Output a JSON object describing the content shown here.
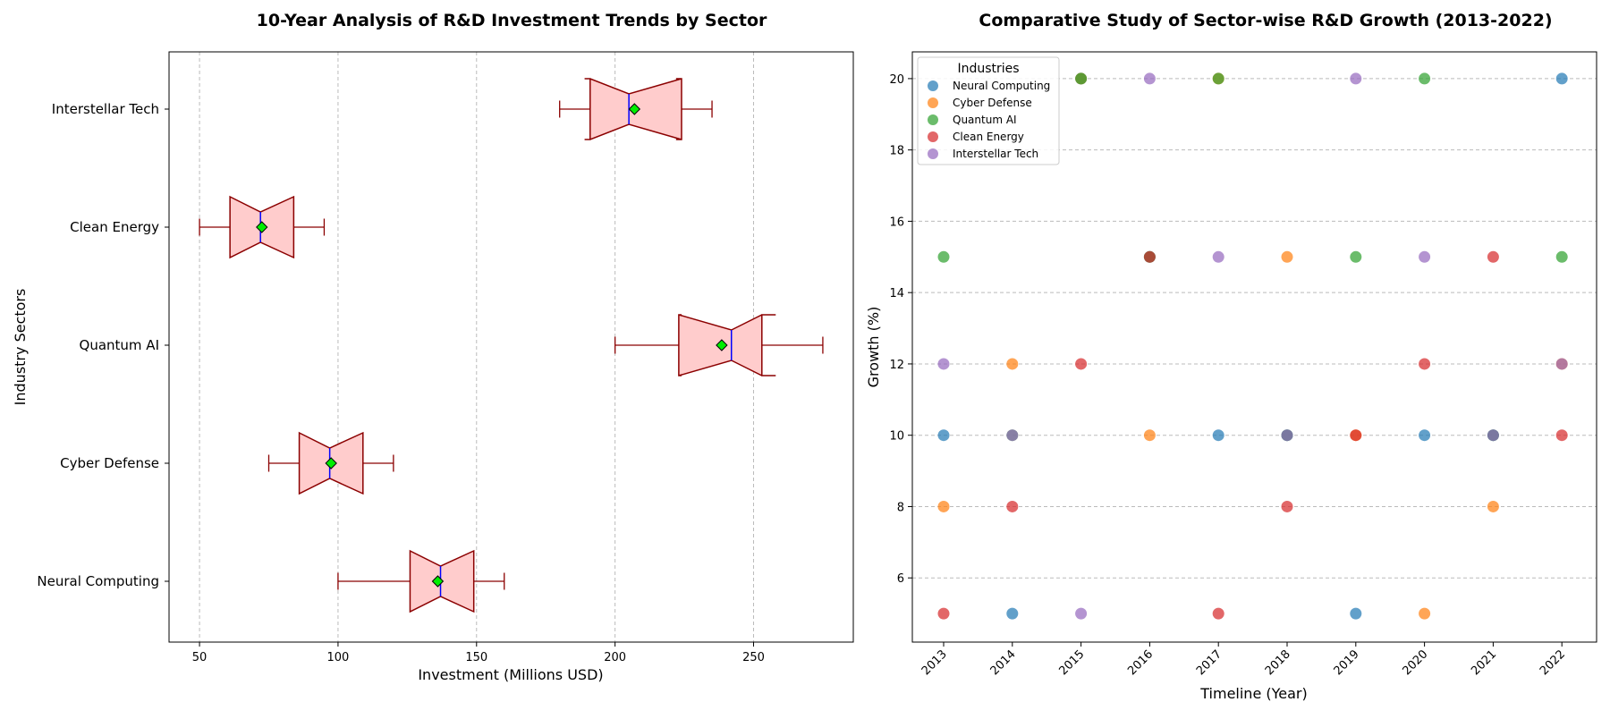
{
  "chart_data": [
    {
      "type": "box",
      "title": "10-Year Analysis of R&D Investment Trends by Sector",
      "xlabel": "Investment (Millions USD)",
      "ylabel": "Industry Sectors",
      "xlim": [
        39,
        286
      ],
      "xticks": [
        50,
        100,
        150,
        200,
        250
      ],
      "grid": "x-dashed",
      "categories": [
        "Neural Computing",
        "Cyber Defense",
        "Quantum AI",
        "Clean Energy",
        "Interstellar Tech"
      ],
      "boxes": [
        {
          "name": "Neural Computing",
          "whislo": 100,
          "q1": 126,
          "med": 137,
          "q3": 149,
          "whishi": 160,
          "mean": 136,
          "notch_lo": 126,
          "notch_hi": 149
        },
        {
          "name": "Cyber Defense",
          "whislo": 75,
          "q1": 86,
          "med": 97,
          "q3": 109,
          "whishi": 120,
          "mean": 97.5,
          "notch_lo": 86,
          "notch_hi": 109
        },
        {
          "name": "Quantum AI",
          "whislo": 200,
          "q1": 223,
          "med": 242,
          "q3": 253,
          "whishi": 275,
          "mean": 238.5,
          "notch_lo": 224,
          "notch_hi": 258
        },
        {
          "name": "Clean Energy",
          "whislo": 50,
          "q1": 61,
          "med": 72,
          "q3": 84,
          "whishi": 95,
          "mean": 72.5,
          "notch_lo": 61,
          "notch_hi": 84
        },
        {
          "name": "Interstellar Tech",
          "whislo": 180,
          "q1": 191,
          "med": 205,
          "q3": 224,
          "whishi": 235,
          "mean": 207,
          "notch_lo": 189,
          "notch_hi": 222
        }
      ],
      "colors": {
        "box_fill": "#ffcccc",
        "box_edge": "#8b0000",
        "median": "#0000ff",
        "mean_marker": "#00ee00",
        "whisker": "#8b0000"
      }
    },
    {
      "type": "scatter",
      "title": "Comparative Study of Sector-wise R&D Growth (2013-2022)",
      "xlabel": "Timeline (Year)",
      "ylabel": "Growth (%)",
      "x": [
        2013,
        2014,
        2015,
        2016,
        2017,
        2018,
        2019,
        2020,
        2021,
        2022
      ],
      "ylim": [
        4.2,
        20.75
      ],
      "yticks": [
        6,
        8,
        10,
        12,
        14,
        16,
        18,
        20
      ],
      "grid": "y-dashed",
      "legend": {
        "title": "Industries",
        "placement": "top-left"
      },
      "series": [
        {
          "name": "Neural Computing",
          "color": "#1f77b4",
          "values": [
            10,
            5,
            20,
            15,
            10,
            10,
            5,
            10,
            10,
            20
          ]
        },
        {
          "name": "Cyber Defense",
          "color": "#ff7f0e",
          "values": [
            8,
            12,
            20,
            10,
            20,
            15,
            10,
            5,
            8,
            12
          ]
        },
        {
          "name": "Quantum AI",
          "color": "#2ca02c",
          "values": [
            15,
            10,
            20,
            15,
            20,
            10,
            15,
            20,
            10,
            15
          ]
        },
        {
          "name": "Clean Energy",
          "color": "#d62728",
          "values": [
            5,
            8,
            12,
            15,
            5,
            8,
            10,
            12,
            15,
            10
          ]
        },
        {
          "name": "Interstellar Tech",
          "color": "#9467bd",
          "values": [
            12,
            10,
            5,
            20,
            15,
            10,
            20,
            15,
            10,
            12
          ]
        }
      ]
    }
  ]
}
